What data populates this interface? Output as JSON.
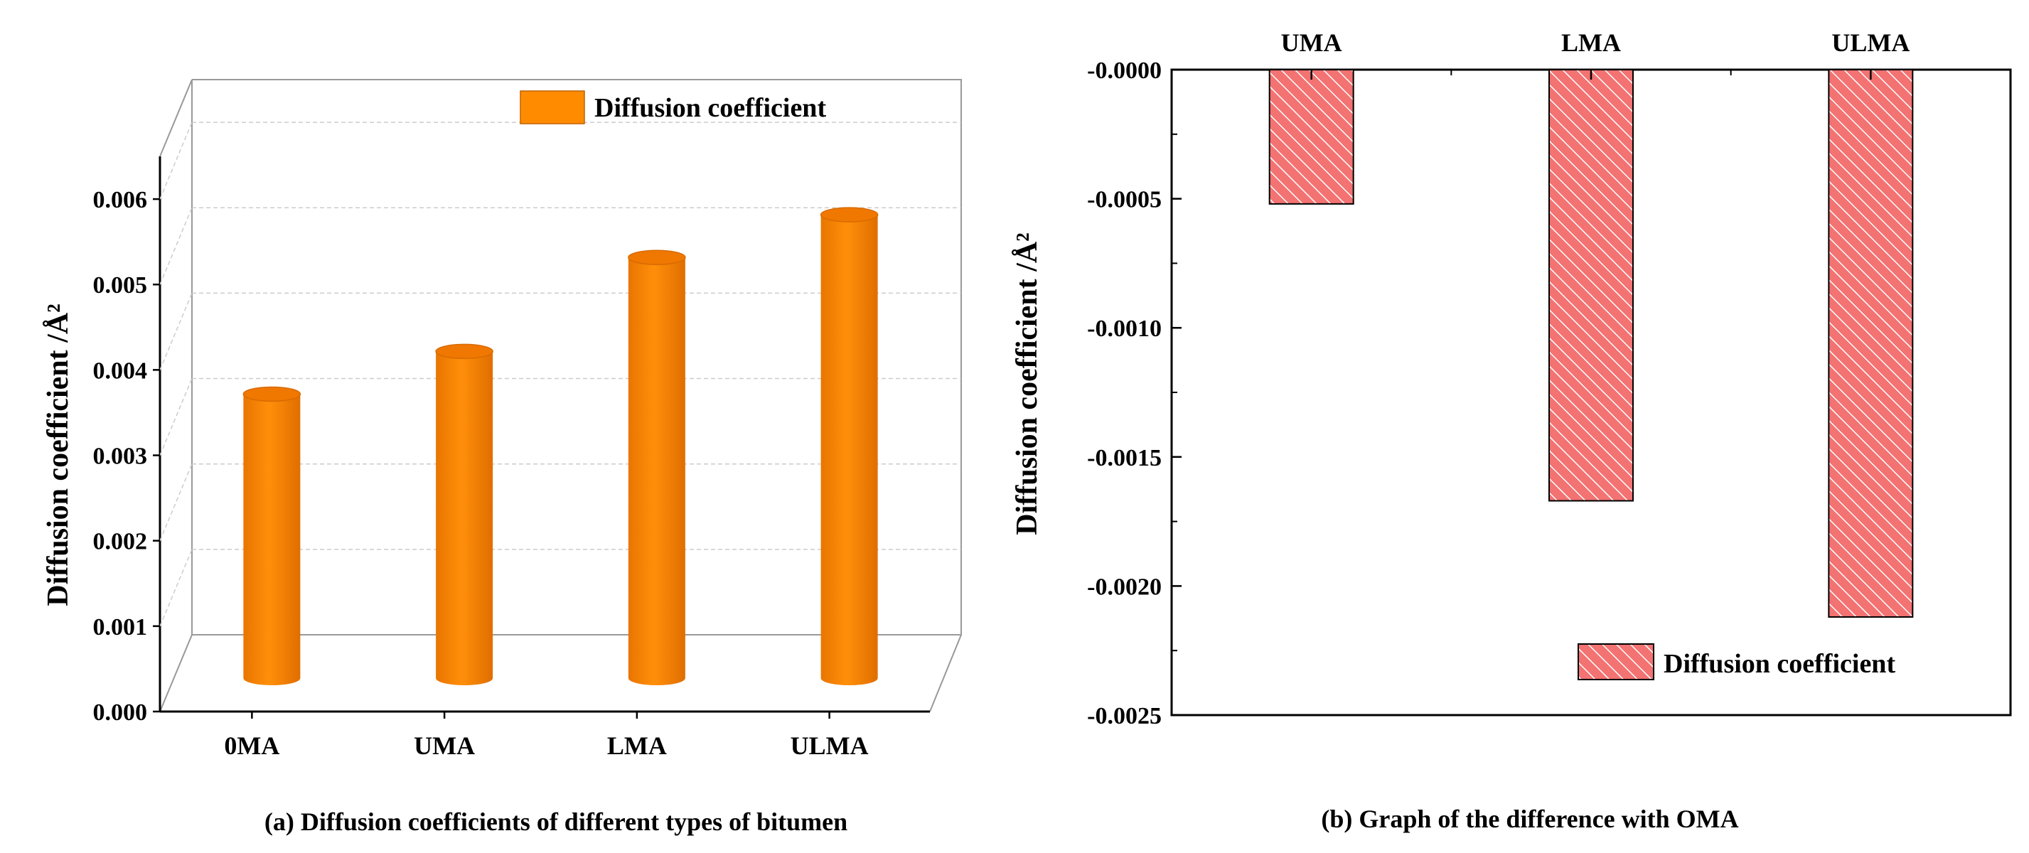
{
  "chart_data": [
    {
      "type": "bar",
      "style": "3d-cylinder",
      "title": "(a) Diffusion coefficients of different types of bitumen",
      "categories": [
        "0MA",
        "UMA",
        "LMA",
        "ULMA"
      ],
      "series": [
        {
          "name": "Diffusion coefficient",
          "values": [
            0.0036,
            0.0041,
            0.0052,
            0.0057
          ]
        }
      ],
      "ylabel": "Diffusion coefficient /Å²",
      "xlabel": "",
      "ylim": [
        0,
        0.0065
      ],
      "yticks": [
        0.0,
        0.001,
        0.002,
        0.003,
        0.004,
        0.005,
        0.006
      ],
      "ytick_labels": [
        "0.000",
        "0.001",
        "0.002",
        "0.003",
        "0.004",
        "0.005",
        "0.006"
      ],
      "legend": "top-right",
      "grid": true,
      "color": "#FF8C00"
    },
    {
      "type": "bar",
      "style": "hatched",
      "title": "(b) Graph of the difference with OMA",
      "categories": [
        "UMA",
        "LMA",
        "ULMA"
      ],
      "series": [
        {
          "name": "Diffusion coefficient",
          "values": [
            -0.00052,
            -0.00167,
            -0.00212
          ]
        }
      ],
      "ylabel": "Diffusion coefficient /Å²",
      "xlabel": "",
      "ylim": [
        -0.0025,
        0
      ],
      "yticks": [
        0.0,
        -0.0005,
        -0.001,
        -0.0015,
        -0.002,
        -0.0025
      ],
      "ytick_labels": [
        "-0.0000",
        "-0.0005",
        "-0.0010",
        "-0.0015",
        "-0.0020",
        "-0.0025"
      ],
      "legend": "bottom-right",
      "grid": false,
      "color": "#F05A5A"
    }
  ]
}
